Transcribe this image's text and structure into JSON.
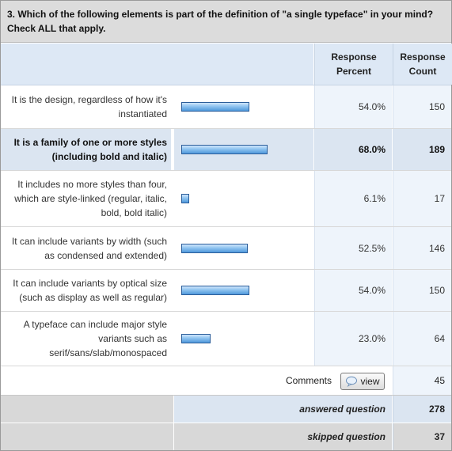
{
  "question": {
    "title": "3. Which of the following elements is part of the definition of \"a single typeface\" in your mind? Check ALL that apply."
  },
  "header": {
    "response_percent": "Response\nPercent",
    "response_count": "Response\nCount"
  },
  "rows": [
    {
      "label": "It is the design, regardless of how it's instantiated",
      "percent_text": "54.0%",
      "percent": 54.0,
      "count": "150"
    },
    {
      "label": "It is a family of one or more styles (including bold and italic)",
      "percent_text": "68.0%",
      "percent": 68.0,
      "count": "189"
    },
    {
      "label": "It includes no more styles than four, which are style-linked (regular, italic, bold, bold italic)",
      "percent_text": "6.1%",
      "percent": 6.1,
      "count": "17"
    },
    {
      "label": "It can include variants by width (such as condensed and extended)",
      "percent_text": "52.5%",
      "percent": 52.5,
      "count": "146"
    },
    {
      "label": "It can include variants by optical size (such as display as well as regular)",
      "percent_text": "54.0%",
      "percent": 54.0,
      "count": "150"
    },
    {
      "label": "A typeface can include major style variants such as serif/sans/slab/monospaced",
      "percent_text": "23.0%",
      "percent": 23.0,
      "count": "64"
    }
  ],
  "comments": {
    "label": "Comments",
    "button": "view",
    "count": "45",
    "icon": "speech-bubble-icon"
  },
  "summary": {
    "answered_label": "answered question",
    "answered_count": "278",
    "skipped_label": "skipped question",
    "skipped_count": "37"
  },
  "colors": {
    "bar_fill": "#8ec3f0",
    "bar_border": "#2a5d9a",
    "header_bg": "#dde8f5",
    "highlight_bg": "#dbe5f1"
  }
}
